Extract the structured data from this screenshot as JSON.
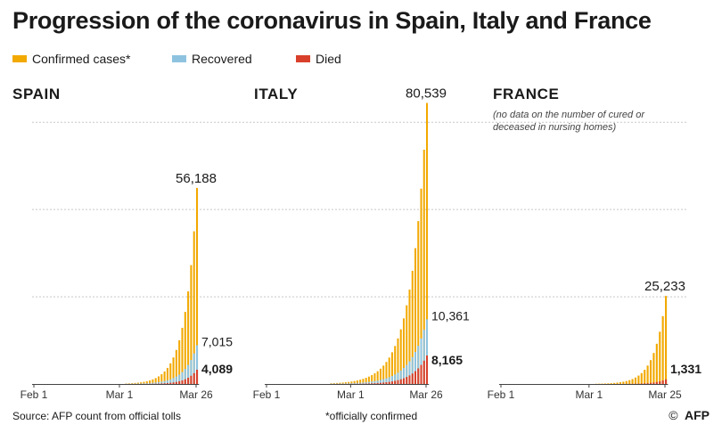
{
  "title": "Progression of the coronavirus in Spain, Italy and France",
  "legend": [
    {
      "label": "Confirmed cases*",
      "color": "#f2a900"
    },
    {
      "label": "Recovered",
      "color": "#8ec3e0"
    },
    {
      "label": "Died",
      "color": "#d9402b"
    }
  ],
  "footer": {
    "source": "Source: AFP count from official tolls",
    "footnote": "*officially confirmed",
    "copyright": "©",
    "logo": "AFP"
  },
  "chart_data": [
    {
      "type": "bar",
      "panel": "SPAIN",
      "x_ticks": [
        "Feb 1",
        "Mar 1",
        "Mar 26"
      ],
      "days": 55,
      "first_case_day": 31,
      "confirmed_final": 56188,
      "recovered_final": 7015,
      "died_final": 4089,
      "labels": {
        "confirmed": "56,188",
        "recovered": "7,015",
        "died": "4,089"
      },
      "note": ""
    },
    {
      "type": "bar",
      "panel": "ITALY",
      "x_ticks": [
        "Feb 1",
        "Mar 1",
        "Mar 26"
      ],
      "days": 55,
      "first_case_day": 22,
      "confirmed_final": 80539,
      "recovered_final": 10361,
      "died_final": 8165,
      "labels": {
        "confirmed": "80,539",
        "recovered": "10,361",
        "died": "8,165"
      },
      "note": ""
    },
    {
      "type": "bar",
      "panel": "FRANCE",
      "x_ticks": [
        "Feb 1",
        "Mar 1",
        "Mar 25"
      ],
      "days": 54,
      "first_case_day": 31,
      "confirmed_final": 25233,
      "recovered_final": 0,
      "died_final": 1331,
      "labels": {
        "confirmed": "25,233",
        "recovered": "",
        "died": "1,331"
      },
      "note": [
        "(no data on the number of cured or",
        " deceased in nursing homes)"
      ]
    }
  ],
  "y_gridlines": [
    0,
    25000,
    50000,
    75000
  ],
  "y_max_display": 84000
}
